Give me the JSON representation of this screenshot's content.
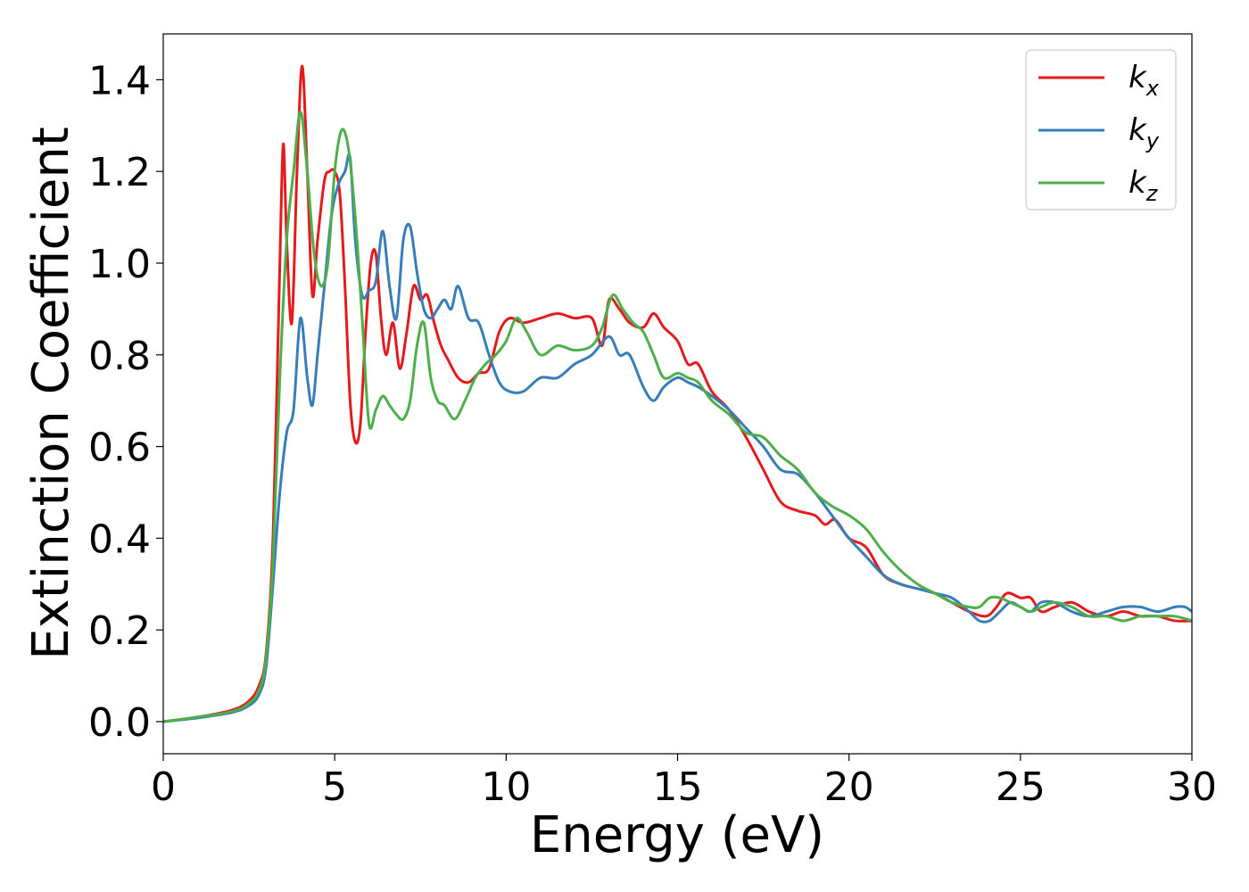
{
  "chart_data": {
    "type": "line",
    "title": "",
    "xlabel": "Energy (eV)",
    "ylabel": "Extinction Coefficient",
    "xlim": [
      0,
      30
    ],
    "ylim": [
      -0.07,
      1.5
    ],
    "grid": false,
    "legend_position": "top-right",
    "xticks": [
      0,
      5,
      10,
      15,
      20,
      25,
      30
    ],
    "xtick_labels": [
      "0",
      "5",
      "10",
      "15",
      "20",
      "25",
      "30"
    ],
    "yticks": [
      0.0,
      0.2,
      0.4,
      0.6,
      0.8,
      1.0,
      1.2,
      1.4
    ],
    "ytick_labels": [
      "0.0",
      "0.2",
      "0.4",
      "0.6",
      "0.8",
      "1.0",
      "1.2",
      "1.4"
    ],
    "series": [
      {
        "name": "k",
        "subscript": "x",
        "color": "#e41a1c",
        "x": [
          0,
          1,
          2,
          2.5,
          2.8,
          3.0,
          3.2,
          3.4,
          3.5,
          3.6,
          3.75,
          3.9,
          4.05,
          4.2,
          4.35,
          4.5,
          4.7,
          4.85,
          5.0,
          5.15,
          5.3,
          5.45,
          5.6,
          5.75,
          5.9,
          6.05,
          6.2,
          6.35,
          6.5,
          6.7,
          6.9,
          7.1,
          7.3,
          7.5,
          7.7,
          7.9,
          8.1,
          8.3,
          8.6,
          8.9,
          9.2,
          9.5,
          9.8,
          10.1,
          10.5,
          11,
          11.5,
          12,
          12.5,
          12.8,
          13.0,
          13.3,
          13.6,
          14.0,
          14.3,
          14.6,
          15.0,
          15.3,
          15.6,
          16.0,
          16.5,
          17.0,
          17.5,
          18.0,
          18.5,
          19.0,
          19.3,
          19.6,
          20.0,
          20.5,
          21.0,
          21.5,
          22.0,
          22.5,
          23.0,
          23.5,
          24.0,
          24.3,
          24.6,
          25.0,
          25.3,
          25.6,
          26.0,
          26.5,
          27.0,
          27.5,
          28.0,
          28.5,
          29.0,
          29.5,
          30
        ],
        "y": [
          0.0,
          0.01,
          0.025,
          0.045,
          0.08,
          0.15,
          0.4,
          1.0,
          1.26,
          1.05,
          0.87,
          1.2,
          1.43,
          1.2,
          0.93,
          1.05,
          1.18,
          1.2,
          1.2,
          1.15,
          0.95,
          0.7,
          0.61,
          0.65,
          0.85,
          1.0,
          1.02,
          0.88,
          0.8,
          0.87,
          0.77,
          0.85,
          0.95,
          0.92,
          0.93,
          0.87,
          0.82,
          0.79,
          0.75,
          0.74,
          0.76,
          0.77,
          0.85,
          0.88,
          0.87,
          0.88,
          0.89,
          0.88,
          0.88,
          0.82,
          0.92,
          0.9,
          0.87,
          0.86,
          0.89,
          0.86,
          0.83,
          0.78,
          0.78,
          0.72,
          0.68,
          0.62,
          0.55,
          0.48,
          0.46,
          0.45,
          0.43,
          0.44,
          0.4,
          0.38,
          0.32,
          0.3,
          0.29,
          0.28,
          0.26,
          0.24,
          0.23,
          0.25,
          0.28,
          0.27,
          0.27,
          0.24,
          0.25,
          0.26,
          0.24,
          0.23,
          0.24,
          0.23,
          0.23,
          0.22,
          0.22
        ]
      },
      {
        "name": "k",
        "subscript": "y",
        "color": "#377eb8",
        "x": [
          0,
          1,
          2,
          2.5,
          2.8,
          3.0,
          3.2,
          3.4,
          3.6,
          3.8,
          4.0,
          4.2,
          4.35,
          4.5,
          4.7,
          4.9,
          5.1,
          5.3,
          5.45,
          5.6,
          5.8,
          6.0,
          6.2,
          6.4,
          6.6,
          6.8,
          7.0,
          7.2,
          7.4,
          7.6,
          7.8,
          8.0,
          8.2,
          8.4,
          8.6,
          8.9,
          9.2,
          9.5,
          9.8,
          10.1,
          10.5,
          11,
          11.5,
          12,
          12.5,
          13.0,
          13.3,
          13.6,
          14.0,
          14.3,
          14.6,
          15.0,
          15.3,
          15.6,
          16.0,
          16.5,
          17.0,
          17.5,
          18.0,
          18.5,
          19.0,
          19.5,
          20.0,
          20.5,
          21.0,
          21.5,
          22.0,
          22.5,
          23.0,
          23.5,
          23.8,
          24.1,
          24.4,
          24.7,
          25.0,
          25.3,
          25.6,
          26.0,
          26.5,
          27.0,
          27.5,
          28.0,
          28.5,
          29.0,
          29.5,
          29.8,
          30
        ],
        "y": [
          0.0,
          0.008,
          0.02,
          0.035,
          0.06,
          0.12,
          0.3,
          0.5,
          0.63,
          0.68,
          0.88,
          0.75,
          0.69,
          0.8,
          0.95,
          1.1,
          1.17,
          1.2,
          1.23,
          1.05,
          0.93,
          0.94,
          0.96,
          1.07,
          0.95,
          0.88,
          1.05,
          1.08,
          0.98,
          0.9,
          0.88,
          0.9,
          0.92,
          0.9,
          0.95,
          0.88,
          0.87,
          0.8,
          0.74,
          0.72,
          0.72,
          0.75,
          0.75,
          0.78,
          0.8,
          0.84,
          0.8,
          0.8,
          0.73,
          0.7,
          0.73,
          0.75,
          0.74,
          0.73,
          0.71,
          0.68,
          0.64,
          0.6,
          0.55,
          0.54,
          0.5,
          0.45,
          0.4,
          0.36,
          0.32,
          0.3,
          0.29,
          0.28,
          0.27,
          0.24,
          0.22,
          0.22,
          0.24,
          0.26,
          0.25,
          0.24,
          0.26,
          0.26,
          0.24,
          0.23,
          0.24,
          0.25,
          0.25,
          0.24,
          0.25,
          0.25,
          0.24
        ]
      },
      {
        "name": "k",
        "subscript": "z",
        "color": "#4daf4a",
        "x": [
          0,
          1,
          2,
          2.5,
          2.8,
          3.0,
          3.2,
          3.4,
          3.6,
          3.8,
          4.0,
          4.2,
          4.4,
          4.6,
          4.8,
          5.0,
          5.2,
          5.4,
          5.6,
          5.8,
          6.0,
          6.2,
          6.4,
          6.6,
          6.8,
          7.0,
          7.2,
          7.4,
          7.6,
          7.8,
          8.0,
          8.2,
          8.5,
          8.8,
          9.1,
          9.4,
          9.7,
          10.0,
          10.3,
          10.6,
          11.0,
          11.5,
          12.0,
          12.5,
          12.8,
          13.1,
          13.4,
          13.7,
          14.0,
          14.3,
          14.6,
          15.0,
          15.3,
          15.6,
          16.0,
          16.5,
          17.0,
          17.5,
          18.0,
          18.5,
          19.0,
          19.5,
          20.0,
          20.5,
          21.0,
          21.5,
          22.0,
          22.5,
          23.0,
          23.5,
          23.8,
          24.1,
          24.4,
          24.7,
          25.0,
          25.3,
          25.6,
          26.0,
          26.5,
          27.0,
          27.5,
          28.0,
          28.5,
          29.0,
          29.5,
          30
        ],
        "y": [
          0.0,
          0.01,
          0.022,
          0.04,
          0.07,
          0.14,
          0.35,
          0.75,
          1.05,
          1.2,
          1.33,
          1.2,
          1.02,
          0.95,
          1.0,
          1.2,
          1.29,
          1.25,
          1.1,
          0.88,
          0.65,
          0.68,
          0.71,
          0.69,
          0.67,
          0.66,
          0.7,
          0.82,
          0.87,
          0.75,
          0.7,
          0.69,
          0.66,
          0.7,
          0.75,
          0.78,
          0.8,
          0.83,
          0.88,
          0.85,
          0.8,
          0.82,
          0.81,
          0.82,
          0.86,
          0.93,
          0.9,
          0.87,
          0.85,
          0.8,
          0.75,
          0.76,
          0.75,
          0.74,
          0.7,
          0.67,
          0.63,
          0.62,
          0.58,
          0.55,
          0.5,
          0.47,
          0.45,
          0.42,
          0.37,
          0.33,
          0.3,
          0.28,
          0.26,
          0.25,
          0.25,
          0.27,
          0.27,
          0.26,
          0.25,
          0.24,
          0.25,
          0.26,
          0.25,
          0.23,
          0.23,
          0.22,
          0.23,
          0.23,
          0.23,
          0.22
        ]
      }
    ]
  }
}
